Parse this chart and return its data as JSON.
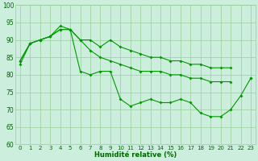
{
  "background_color": "#cceedd",
  "grid_color": "#99cc99",
  "line_color": "#009900",
  "xlabel": "Humidité relative (%)",
  "ylim": [
    60,
    100
  ],
  "yticks": [
    60,
    65,
    70,
    75,
    80,
    85,
    90,
    95,
    100
  ],
  "xlim": [
    -0.5,
    23.5
  ],
  "xticks": [
    0,
    1,
    2,
    3,
    4,
    5,
    6,
    7,
    8,
    9,
    10,
    11,
    12,
    13,
    14,
    15,
    16,
    17,
    18,
    19,
    20,
    21,
    22,
    23
  ],
  "line_top": [
    84,
    89,
    90,
    91,
    94,
    93,
    90,
    90,
    88,
    90,
    88,
    87,
    86,
    85,
    85,
    84,
    84,
    83,
    83,
    82,
    82,
    82,
    null,
    79
  ],
  "line_mid": [
    84,
    89,
    90,
    91,
    93,
    93,
    90,
    87,
    85,
    84,
    83,
    82,
    81,
    81,
    81,
    80,
    80,
    79,
    79,
    78,
    78,
    78,
    null,
    null
  ],
  "line_bot": [
    83,
    89,
    90,
    91,
    93,
    93,
    81,
    80,
    81,
    81,
    73,
    71,
    72,
    73,
    72,
    72,
    73,
    72,
    69,
    68,
    68,
    70,
    74,
    79
  ],
  "lw": 0.8,
  "ms": 2.0,
  "tick_fontsize": 5.0,
  "xlabel_fontsize": 6.0
}
